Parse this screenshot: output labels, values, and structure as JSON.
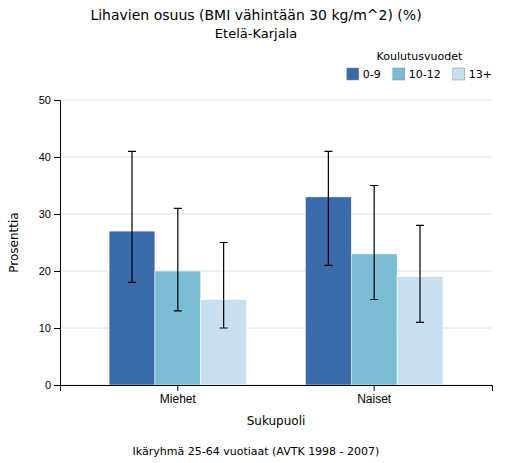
{
  "chart_data": {
    "type": "bar",
    "title": "Lihavien osuus (BMI vähintään 30 kg/m^2) (%)",
    "subtitle": "Etelä-Karjala",
    "xlabel": "Sukupuoli",
    "ylabel": "Prosenttia",
    "footnote": "Ikäryhmä 25-64 vuotiaat (AVTK 1998 - 2007)",
    "legend_title": "Koulutusvuodet",
    "legend": "upper right",
    "grid": true,
    "categories": [
      "Miehet",
      "Naiset"
    ],
    "series": [
      {
        "name": "0-9",
        "color": "#3A6AAA",
        "values": [
          27,
          33
        ],
        "errors_upper": [
          14,
          8
        ],
        "errors_lower": [
          9,
          12
        ]
      },
      {
        "name": "10-12",
        "color": "#7BBDD4",
        "values": [
          20,
          23
        ],
        "errors_upper": [
          11,
          12
        ],
        "errors_lower": [
          7,
          8
        ]
      },
      {
        "name": "13+",
        "color": "#C8DFF0",
        "values": [
          15,
          19
        ],
        "errors_upper": [
          10,
          9
        ],
        "errors_lower": [
          5,
          8
        ]
      }
    ],
    "ylim": [
      0,
      50
    ],
    "yticks": [
      0,
      10,
      20,
      30,
      40,
      50
    ]
  }
}
